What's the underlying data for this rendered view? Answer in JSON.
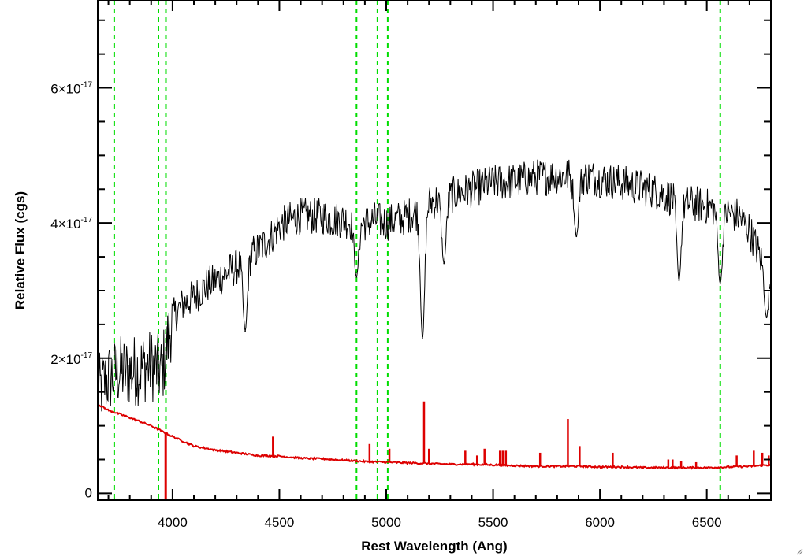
{
  "chart_data": {
    "type": "line",
    "title": "",
    "xlabel": "Rest Wavelength (Ang)",
    "ylabel": "Relative Flux (cgs)",
    "xlim": [
      3650,
      6800
    ],
    "ylim": [
      -1e-18,
      7.3e-17
    ],
    "x_ticks": [
      4000,
      4500,
      5000,
      5500,
      6000,
      6500
    ],
    "y_ticks": [
      {
        "value": 0,
        "mantissa": "0",
        "exponent": ""
      },
      {
        "value": 2e-17,
        "mantissa": "2×10",
        "exponent": "-17"
      },
      {
        "value": 4e-17,
        "mantissa": "4×10",
        "exponent": "-17"
      },
      {
        "value": 6e-17,
        "mantissa": "6×10",
        "exponent": "-17"
      }
    ],
    "reference_lines_x": [
      3727,
      3934,
      3969,
      4861,
      4959,
      5007,
      6563
    ],
    "series": [
      {
        "color": "#000000",
        "x": [
          3650,
          3700,
          3750,
          3800,
          3850,
          3900,
          3950,
          3975,
          4000,
          4050,
          4100,
          4150,
          4200,
          4250,
          4300,
          4350,
          4400,
          4450,
          4500,
          4550,
          4600,
          4650,
          4700,
          4750,
          4800,
          4850,
          4900,
          4950,
          5000,
          5050,
          5100,
          5150,
          5200,
          5250,
          5300,
          5350,
          5400,
          5450,
          5500,
          5550,
          5600,
          5650,
          5700,
          5750,
          5800,
          5850,
          5900,
          5950,
          6000,
          6050,
          6100,
          6150,
          6200,
          6250,
          6300,
          6350,
          6400,
          6450,
          6500,
          6550,
          6600,
          6650,
          6700,
          6750,
          6800
        ],
        "y": [
          1.5e-17,
          1.7e-17,
          1.8e-17,
          1.8e-17,
          1.85e-17,
          1.9e-17,
          1.8e-17,
          2.2e-17,
          2.6e-17,
          2.8e-17,
          2.9e-17,
          3.05e-17,
          3.15e-17,
          3.25e-17,
          3.35e-17,
          3.5e-17,
          3.6e-17,
          3.75e-17,
          3.95e-17,
          4.05e-17,
          4.1e-17,
          4.1e-17,
          4.1e-17,
          4.05e-17,
          4.05e-17,
          4e-17,
          4e-17,
          4.05e-17,
          4e-17,
          4.05e-17,
          4.1e-17,
          4.2e-17,
          4.3e-17,
          4.35e-17,
          4.4e-17,
          4.45e-17,
          4.5e-17,
          4.55e-17,
          4.6e-17,
          4.6e-17,
          4.62e-17,
          4.65e-17,
          4.68e-17,
          4.68e-17,
          4.7e-17,
          4.7e-17,
          4.68e-17,
          4.68e-17,
          4.65e-17,
          4.62e-17,
          4.6e-17,
          4.55e-17,
          4.52e-17,
          4.48e-17,
          4.42e-17,
          4.35e-17,
          4.3e-17,
          4.28e-17,
          4.25e-17,
          4.2e-17,
          4.15e-17,
          4.1e-17,
          3.9e-17,
          3.5e-17,
          3.3e-17
        ],
        "features": [
          {
            "x": 4340,
            "y": 2.4e-17
          },
          {
            "x": 4861,
            "y": 3.2e-17
          },
          {
            "x": 5170,
            "y": 2.3e-17
          },
          {
            "x": 5270,
            "y": 3.4e-17
          },
          {
            "x": 5890,
            "y": 3.8e-17
          },
          {
            "x": 6370,
            "y": 3.15e-17
          },
          {
            "x": 6563,
            "y": 3.1e-17
          },
          {
            "x": 6780,
            "y": 2.6e-17
          }
        ]
      },
      {
        "color": "#dd0000",
        "x": [
          3650,
          3700,
          3800,
          3900,
          4000,
          4100,
          4200,
          4300,
          4400,
          4500,
          4600,
          4700,
          4800,
          4900,
          5000,
          5100,
          5200,
          5300,
          5400,
          5500,
          5600,
          5700,
          5800,
          5900,
          6000,
          6100,
          6200,
          6300,
          6400,
          6500,
          6600,
          6700,
          6800
        ],
        "y": [
          1.32e-17,
          1.23e-17,
          1.12e-17,
          1e-17,
          8.4e-18,
          7e-18,
          6.4e-18,
          6e-18,
          5.6e-18,
          5.5e-18,
          5.2e-18,
          5.1e-18,
          4.9e-18,
          4.7e-18,
          4.6e-18,
          4.5e-18,
          4.4e-18,
          4.3e-18,
          4.3e-18,
          4.2e-18,
          4.1e-18,
          4e-18,
          4e-18,
          4e-18,
          3.9e-18,
          3.9e-18,
          3.8e-18,
          3.8e-18,
          3.8e-18,
          3.8e-18,
          3.9e-18,
          4e-18,
          4.2e-18
        ],
        "lines": [
          {
            "x": 4470,
            "y": 8.4e-18
          },
          {
            "x": 4922,
            "y": 7.3e-18
          },
          {
            "x": 5015,
            "y": 6.6e-18
          },
          {
            "x": 5177,
            "y": 1.36e-17
          },
          {
            "x": 5200,
            "y": 6.6e-18
          },
          {
            "x": 5370,
            "y": 6.3e-18
          },
          {
            "x": 5425,
            "y": 5.6e-18
          },
          {
            "x": 5460,
            "y": 6.6e-18
          },
          {
            "x": 5532,
            "y": 6.3e-18
          },
          {
            "x": 5545,
            "y": 6.3e-18
          },
          {
            "x": 5560,
            "y": 6.3e-18
          },
          {
            "x": 5720,
            "y": 6e-18
          },
          {
            "x": 5850,
            "y": 1.1e-17
          },
          {
            "x": 5905,
            "y": 7e-18
          },
          {
            "x": 6060,
            "y": 6e-18
          },
          {
            "x": 6320,
            "y": 5e-18
          },
          {
            "x": 6340,
            "y": 5e-18
          },
          {
            "x": 6380,
            "y": 4.8e-18
          },
          {
            "x": 6450,
            "y": 4.6e-18
          },
          {
            "x": 6640,
            "y": 5.6e-18
          },
          {
            "x": 6720,
            "y": 6.3e-18
          },
          {
            "x": 6760,
            "y": 6e-18
          },
          {
            "x": 6790,
            "y": 5.6e-18
          }
        ]
      }
    ],
    "colors": {
      "reference_lines": "#00dd00",
      "frame": "#000000"
    }
  }
}
